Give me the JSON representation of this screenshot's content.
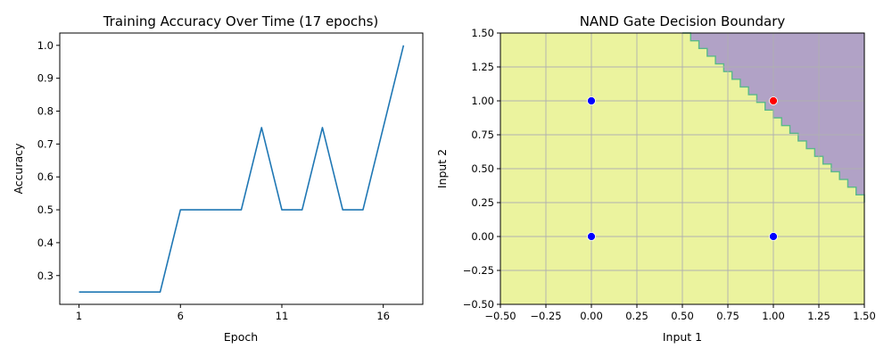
{
  "chart_data": [
    {
      "type": "line",
      "title": "Training Accuracy Over Time (17 epochs)",
      "xlabel": "Epoch",
      "ylabel": "Accuracy",
      "xlim": [
        0.05,
        17.95
      ],
      "ylim": [
        0.2125,
        1.0375
      ],
      "xticks": [
        1,
        6,
        11,
        16
      ],
      "xtick_labels": [
        "1",
        "6",
        "11",
        "16"
      ],
      "yticks": [
        0.3,
        0.4,
        0.5,
        0.6,
        0.7,
        0.8,
        0.9,
        1.0
      ],
      "ytick_labels": [
        "0.3",
        "0.4",
        "0.5",
        "0.6",
        "0.7",
        "0.8",
        "0.9",
        "1.0"
      ],
      "grid": false,
      "line_color": "#1f77b4",
      "series": [
        {
          "x": [
            1,
            2,
            3,
            4,
            5,
            6,
            7,
            8,
            9,
            10,
            11,
            12,
            13,
            14,
            15,
            16,
            17
          ],
          "values": [
            0.25,
            0.25,
            0.25,
            0.25,
            0.25,
            0.5,
            0.5,
            0.5,
            0.5,
            0.75,
            0.5,
            0.5,
            0.75,
            0.5,
            0.5,
            0.75,
            1.0
          ]
        }
      ]
    },
    {
      "type": "scatter",
      "title": "NAND Gate Decision Boundary",
      "xlabel": "Input 1",
      "ylabel": "Input 2",
      "xlim": [
        -0.5,
        1.5
      ],
      "ylim": [
        -0.5,
        1.5
      ],
      "xticks": [
        -0.5,
        -0.25,
        0.0,
        0.25,
        0.5,
        0.75,
        1.0,
        1.25,
        1.5
      ],
      "xtick_labels": [
        "−0.50",
        "−0.25",
        "0.00",
        "0.25",
        "0.50",
        "0.75",
        "1.00",
        "1.25",
        "1.50"
      ],
      "yticks": [
        -0.5,
        -0.25,
        0.0,
        0.25,
        0.5,
        0.75,
        1.0,
        1.25,
        1.5
      ],
      "ytick_labels": [
        "−0.50",
        "−0.25",
        "0.00",
        "0.25",
        "0.50",
        "0.75",
        "1.00",
        "1.25",
        "1.50"
      ],
      "grid": true,
      "decision_boundary": {
        "points": [
          [
            0.5,
            1.5
          ],
          [
            1.5,
            0.25
          ]
        ]
      },
      "region_colors": {
        "output_1": "#ebf39e",
        "output_0": "#b1a2c6",
        "boundary": "#5ab88a"
      },
      "points": [
        {
          "x": 0,
          "y": 0,
          "label": 1,
          "color": "#0000ff"
        },
        {
          "x": 0,
          "y": 1,
          "label": 1,
          "color": "#0000ff"
        },
        {
          "x": 1,
          "y": 0,
          "label": 1,
          "color": "#0000ff"
        },
        {
          "x": 1,
          "y": 1,
          "label": 0,
          "color": "#ff0000"
        }
      ]
    }
  ]
}
